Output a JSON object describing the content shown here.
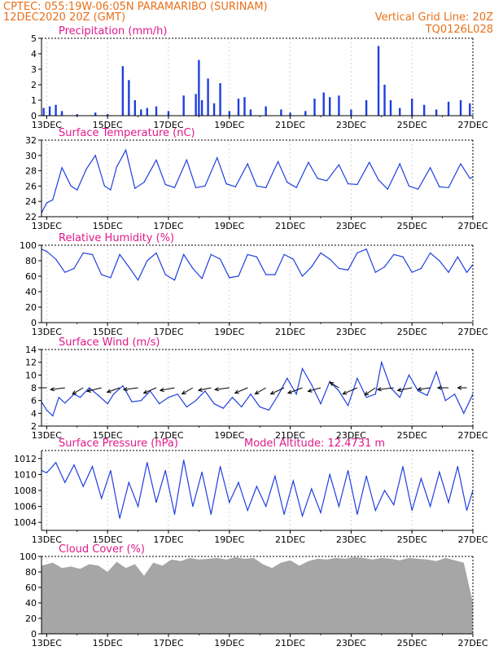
{
  "header": {
    "line1_left": "CPTEC:   055:19W-06:05N  PARAMARIBO (SURINAM)",
    "line2_left": "12DEC2020 20Z (GMT)",
    "line2_right": "Vertical Grid Line: 20Z",
    "line3_right": "TQ0126L028"
  },
  "x_tick_labels": [
    "13DEC",
    "15DEC",
    "17DEC",
    "19DEC",
    "21DEC",
    "23DEC",
    "25DEC",
    "27DEC"
  ],
  "colors": {
    "series": "#1f3fe0",
    "title": "#e0198a",
    "header": "#e8701a",
    "cloud": "#a6a6a6",
    "frame": "#000000"
  },
  "chart_data": [
    {
      "id": "precip",
      "type": "bar",
      "title": "Precipitation (mm/h)",
      "x_unit": "days after 12DEC 00Z",
      "xlim": [
        0.83,
        15.0
      ],
      "ylim": [
        0,
        5
      ],
      "yticks": [
        0,
        1,
        2,
        3,
        4,
        5
      ],
      "x": [
        0.9,
        1.1,
        1.3,
        1.5,
        2.0,
        2.6,
        3.0,
        3.5,
        3.7,
        3.9,
        4.1,
        4.3,
        4.6,
        5.0,
        5.5,
        5.9,
        6.0,
        6.1,
        6.3,
        6.5,
        6.7,
        7.0,
        7.3,
        7.5,
        7.7,
        8.2,
        8.7,
        9.0,
        9.5,
        9.8,
        10.1,
        10.3,
        10.6,
        11.0,
        11.5,
        11.9,
        12.1,
        12.3,
        12.6,
        13.0,
        13.4,
        13.8,
        14.2,
        14.6,
        14.9
      ],
      "values": [
        0.5,
        0.6,
        0.7,
        0.3,
        0.1,
        0.2,
        0.1,
        3.2,
        2.3,
        1.0,
        0.4,
        0.5,
        0.6,
        0.3,
        1.3,
        1.4,
        3.6,
        1.0,
        2.4,
        0.8,
        2.1,
        0.3,
        1.1,
        1.2,
        0.4,
        0.6,
        0.4,
        0.2,
        0.3,
        1.1,
        1.5,
        1.2,
        1.3,
        0.4,
        1.0,
        4.5,
        2.0,
        1.0,
        0.5,
        1.1,
        0.7,
        0.4,
        0.9,
        1.0,
        0.8
      ]
    },
    {
      "id": "temp",
      "type": "line",
      "title": "Surface Temperature (nC)",
      "x_unit": "days after 12DEC 00Z",
      "xlim": [
        0.83,
        15.0
      ],
      "ylim": [
        22,
        32
      ],
      "yticks": [
        22,
        24,
        26,
        28,
        30,
        32
      ],
      "x": [
        0.83,
        1.0,
        1.2,
        1.5,
        1.8,
        2.0,
        2.3,
        2.6,
        2.9,
        3.1,
        3.3,
        3.6,
        3.9,
        4.2,
        4.6,
        4.9,
        5.2,
        5.6,
        5.9,
        6.2,
        6.6,
        6.9,
        7.2,
        7.6,
        7.9,
        8.2,
        8.6,
        8.9,
        9.2,
        9.6,
        9.9,
        10.2,
        10.6,
        10.9,
        11.2,
        11.6,
        11.9,
        12.2,
        12.6,
        12.9,
        13.2,
        13.6,
        13.9,
        14.2,
        14.6,
        14.9,
        15.0
      ],
      "values": [
        22.5,
        23.8,
        24.2,
        28.4,
        26.0,
        25.5,
        28.2,
        30.0,
        26.0,
        25.5,
        28.5,
        30.7,
        25.7,
        26.5,
        29.4,
        26.2,
        25.8,
        29.4,
        25.8,
        26.0,
        29.7,
        26.3,
        25.9,
        28.9,
        26.0,
        25.8,
        29.2,
        26.5,
        25.8,
        29.1,
        27.0,
        26.7,
        28.8,
        26.3,
        26.2,
        29.1,
        26.8,
        25.6,
        28.9,
        26.0,
        25.6,
        28.4,
        25.9,
        25.8,
        28.9,
        27.0,
        27.2
      ]
    },
    {
      "id": "rh",
      "type": "line",
      "title": "Relative Humidity (%)",
      "x_unit": "days after 12DEC 00Z",
      "xlim": [
        0.83,
        15.0
      ],
      "ylim": [
        0,
        100
      ],
      "yticks": [
        0,
        20,
        40,
        60,
        80,
        100
      ],
      "x": [
        0.83,
        1.0,
        1.3,
        1.6,
        1.9,
        2.2,
        2.5,
        2.8,
        3.1,
        3.4,
        3.7,
        4.0,
        4.3,
        4.6,
        4.9,
        5.2,
        5.5,
        5.8,
        6.1,
        6.4,
        6.7,
        7.0,
        7.3,
        7.6,
        7.9,
        8.2,
        8.5,
        8.8,
        9.1,
        9.4,
        9.7,
        10.0,
        10.3,
        10.6,
        10.9,
        11.2,
        11.5,
        11.8,
        12.1,
        12.4,
        12.7,
        13.0,
        13.3,
        13.6,
        13.9,
        14.2,
        14.5,
        14.8,
        15.0
      ],
      "values": [
        95,
        92,
        82,
        65,
        70,
        90,
        88,
        62,
        58,
        88,
        72,
        55,
        80,
        90,
        62,
        55,
        88,
        70,
        57,
        88,
        82,
        58,
        60,
        88,
        85,
        62,
        62,
        88,
        82,
        60,
        72,
        90,
        82,
        70,
        68,
        90,
        95,
        65,
        72,
        88,
        85,
        65,
        70,
        90,
        80,
        65,
        85,
        65,
        75
      ]
    },
    {
      "id": "wind",
      "type": "line",
      "title": "Surface Wind (m/s)",
      "x_unit": "days after 12DEC 00Z",
      "xlim": [
        0.83,
        15.0
      ],
      "ylim": [
        2,
        14
      ],
      "yticks": [
        2,
        4,
        6,
        8,
        10,
        12,
        14
      ],
      "x": [
        0.83,
        1.0,
        1.2,
        1.4,
        1.6,
        1.9,
        2.1,
        2.4,
        2.7,
        3.0,
        3.2,
        3.5,
        3.8,
        4.1,
        4.4,
        4.7,
        5.0,
        5.3,
        5.6,
        5.9,
        6.2,
        6.5,
        6.8,
        7.1,
        7.4,
        7.7,
        8.0,
        8.3,
        8.6,
        8.9,
        9.2,
        9.4,
        9.7,
        10.0,
        10.3,
        10.6,
        10.9,
        11.2,
        11.5,
        11.8,
        12.0,
        12.3,
        12.6,
        12.9,
        13.2,
        13.5,
        13.8,
        14.1,
        14.4,
        14.7,
        15.0
      ],
      "values": [
        5.8,
        4.5,
        3.6,
        6.5,
        5.6,
        7.0,
        6.5,
        8.0,
        6.8,
        5.5,
        7.0,
        8.3,
        5.8,
        6.0,
        7.5,
        5.5,
        6.5,
        7.0,
        5.0,
        6.0,
        7.5,
        5.5,
        4.8,
        6.5,
        5.0,
        7.0,
        5.0,
        4.5,
        6.8,
        9.5,
        7.0,
        11.0,
        8.5,
        5.5,
        9.0,
        7.5,
        5.2,
        9.5,
        6.5,
        7.0,
        12.0,
        8.0,
        6.5,
        10.0,
        7.5,
        6.8,
        10.5,
        6.0,
        7.0,
        4.0,
        7.0
      ],
      "arrows": [
        {
          "x": 1.0,
          "u": -0.7,
          "v": 0.0
        },
        {
          "x": 1.6,
          "u": -0.8,
          "v": -0.1
        },
        {
          "x": 2.2,
          "u": -0.6,
          "v": -0.35
        },
        {
          "x": 2.8,
          "u": -0.8,
          "v": -0.2
        },
        {
          "x": 3.4,
          "u": -0.7,
          "v": -0.25
        },
        {
          "x": 4.0,
          "u": -0.8,
          "v": -0.1
        },
        {
          "x": 4.6,
          "u": -0.7,
          "v": -0.3
        },
        {
          "x": 5.2,
          "u": -0.8,
          "v": -0.15
        },
        {
          "x": 5.8,
          "u": -0.6,
          "v": -0.35
        },
        {
          "x": 6.4,
          "u": -0.7,
          "v": -0.15
        },
        {
          "x": 7.0,
          "u": -0.8,
          "v": -0.1
        },
        {
          "x": 7.6,
          "u": -0.7,
          "v": -0.3
        },
        {
          "x": 8.2,
          "u": -0.6,
          "v": -0.35
        },
        {
          "x": 8.8,
          "u": -0.75,
          "v": -0.35
        },
        {
          "x": 9.4,
          "u": -0.8,
          "v": -0.3
        },
        {
          "x": 10.0,
          "u": -0.7,
          "v": -0.2
        },
        {
          "x": 10.6,
          "u": -0.5,
          "v": 0.3
        },
        {
          "x": 11.2,
          "u": -0.8,
          "v": -0.35
        },
        {
          "x": 11.8,
          "u": -0.6,
          "v": -0.4
        },
        {
          "x": 12.4,
          "u": -0.9,
          "v": -0.1
        },
        {
          "x": 13.0,
          "u": -0.8,
          "v": -0.15
        },
        {
          "x": 13.6,
          "u": -0.7,
          "v": -0.1
        },
        {
          "x": 14.2,
          "u": -0.6,
          "v": 0.0
        },
        {
          "x": 14.8,
          "u": -0.5,
          "v": 0.0
        }
      ]
    },
    {
      "id": "pres",
      "type": "line",
      "title": "Surface Pressure (hPa)",
      "annotation": "Model Altitude: 12.4731 m",
      "x_unit": "days after 12DEC 00Z",
      "xlim": [
        0.83,
        15.0
      ],
      "ylim": [
        1003,
        1013
      ],
      "yticks": [
        1004,
        1006,
        1008,
        1010,
        1012
      ],
      "x": [
        0.83,
        1.0,
        1.3,
        1.6,
        1.9,
        2.2,
        2.5,
        2.8,
        3.1,
        3.4,
        3.7,
        4.0,
        4.3,
        4.6,
        4.9,
        5.2,
        5.5,
        5.8,
        6.1,
        6.4,
        6.7,
        7.0,
        7.3,
        7.6,
        7.9,
        8.2,
        8.5,
        8.8,
        9.1,
        9.4,
        9.7,
        10.0,
        10.3,
        10.6,
        10.9,
        11.2,
        11.5,
        11.8,
        12.1,
        12.4,
        12.7,
        13.0,
        13.3,
        13.6,
        13.9,
        14.2,
        14.5,
        14.8,
        15.0
      ],
      "values": [
        1010.5,
        1010.2,
        1011.5,
        1009.0,
        1011.2,
        1008.5,
        1011.0,
        1007.0,
        1010.5,
        1004.5,
        1009.0,
        1006.0,
        1011.5,
        1006.5,
        1010.5,
        1005.0,
        1011.8,
        1006.0,
        1010.3,
        1005.0,
        1011.0,
        1006.5,
        1009.0,
        1005.5,
        1008.5,
        1006.0,
        1009.8,
        1005.0,
        1009.2,
        1004.8,
        1008.2,
        1005.2,
        1010.0,
        1006.0,
        1010.5,
        1005.0,
        1009.8,
        1005.5,
        1008.0,
        1006.2,
        1011.0,
        1005.5,
        1009.5,
        1006.0,
        1010.3,
        1006.5,
        1011.0,
        1005.5,
        1008.0
      ]
    },
    {
      "id": "cloud",
      "type": "area",
      "title": "Cloud Cover (%)",
      "x_unit": "days after 12DEC 00Z",
      "xlim": [
        0.83,
        15.0
      ],
      "ylim": [
        0,
        100
      ],
      "yticks": [
        0,
        20,
        40,
        60,
        80,
        100
      ],
      "x": [
        0.83,
        1.2,
        1.5,
        1.8,
        2.1,
        2.4,
        2.7,
        3.0,
        3.3,
        3.6,
        3.9,
        4.2,
        4.5,
        4.8,
        5.1,
        5.4,
        5.7,
        6.0,
        6.3,
        6.6,
        6.9,
        7.2,
        7.5,
        7.8,
        8.1,
        8.4,
        8.7,
        9.0,
        9.3,
        9.6,
        9.9,
        10.2,
        10.5,
        10.8,
        11.1,
        11.4,
        11.7,
        12.0,
        12.3,
        12.6,
        12.9,
        13.2,
        13.5,
        13.8,
        14.1,
        14.4,
        14.7,
        15.0
      ],
      "values": [
        88,
        92,
        85,
        87,
        84,
        90,
        88,
        80,
        93,
        85,
        90,
        75,
        92,
        88,
        96,
        94,
        98,
        96,
        97,
        98,
        96,
        99,
        97,
        98,
        90,
        85,
        92,
        95,
        88,
        94,
        97,
        96,
        98,
        97,
        99,
        98,
        96,
        98,
        97,
        95,
        98,
        97,
        96,
        94,
        98,
        95,
        92,
        40
      ]
    }
  ]
}
